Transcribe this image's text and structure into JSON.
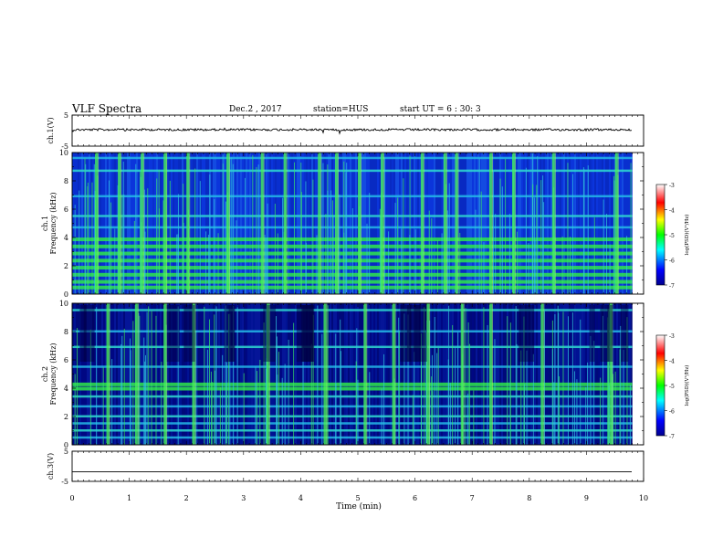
{
  "header": {
    "title": "VLF Spectra",
    "date": "Dec.2 , 2017",
    "station": "station=HUS",
    "start": "start UT = 6 : 30: 3"
  },
  "chart_data": [
    {
      "type": "line",
      "panel": "ch1-waveform",
      "ylabel": "ch.1(V)",
      "ylim": [
        -5,
        5
      ],
      "y_ticks": [
        "5",
        "-5"
      ],
      "xlim": [
        0,
        10
      ],
      "series_level": 0.3,
      "active_until_min": 9.8
    },
    {
      "type": "heatmap",
      "panel": "ch1-spectrogram",
      "ylabel_channel": "ch.1",
      "ylabel": "Frequency (kHz)",
      "ylim": [
        0,
        10
      ],
      "y_ticks": [
        "0",
        "2",
        "4",
        "6",
        "8",
        "10"
      ],
      "xlim": [
        0,
        10
      ],
      "active_until_min": 9.8,
      "colorbar": {
        "label": "log(PSD)(V²/Hz)",
        "range": [
          -7,
          -3
        ],
        "ticks": [
          "-3",
          "-4",
          "-5",
          "-6",
          "-7"
        ]
      },
      "bands_khz": [
        0.5,
        0.9,
        1.4,
        1.9,
        2.4,
        2.9,
        3.4,
        3.9,
        4.7,
        5.5,
        6.9,
        8.7,
        9.6
      ],
      "burst_times_min": [
        0.4,
        0.8,
        1.2,
        1.6,
        2.0,
        2.7,
        3.3,
        3.7,
        4.3,
        4.6,
        5.0,
        5.4,
        6.1,
        6.5,
        6.7,
        7.3,
        7.7,
        8.4,
        9.5
      ]
    },
    {
      "type": "heatmap",
      "panel": "ch2-spectrogram",
      "ylabel_channel": "ch.2",
      "ylabel": "Frequency (kHz)",
      "ylim": [
        0,
        10
      ],
      "y_ticks": [
        "0",
        "2",
        "4",
        "6",
        "8",
        "10"
      ],
      "xlim": [
        0,
        10
      ],
      "active_until_min": 9.8,
      "colorbar": {
        "label": "log(PSD)(V²/Hz)",
        "range": [
          -7,
          -3
        ],
        "ticks": [
          "-3",
          "-4",
          "-5",
          "-6",
          "-7"
        ]
      },
      "bands_khz": [
        0.5,
        1.0,
        1.5,
        2.0,
        2.7,
        3.4,
        4.0,
        4.3,
        5.5,
        6.9,
        8.0,
        9.5
      ],
      "burst_times_min": [
        0.6,
        1.1,
        1.6,
        2.1,
        3.4,
        4.4,
        5.1,
        5.6,
        6.2,
        6.8,
        7.3,
        8.2,
        9.4
      ]
    },
    {
      "type": "line",
      "panel": "ch3-waveform",
      "ylabel": "ch.3(V)",
      "ylim": [
        -5,
        5
      ],
      "y_ticks": [
        "5",
        "-5"
      ],
      "xlim": [
        0,
        10
      ],
      "series_level": -1.8,
      "active_until_min": 9.8
    }
  ],
  "x_axis": {
    "label": "Time (min)",
    "ticks": [
      "0",
      "1",
      "2",
      "3",
      "4",
      "5",
      "6",
      "7",
      "8",
      "9",
      "10"
    ]
  }
}
